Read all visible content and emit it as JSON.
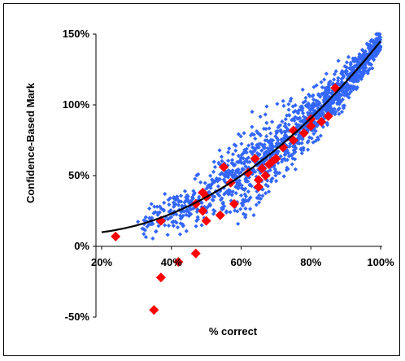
{
  "chart_data": {
    "type": "scatter",
    "title": "",
    "xlabel": "% correct",
    "ylabel": "Confidence-Based Mark",
    "xlim": [
      0.2,
      1.0
    ],
    "ylim": [
      -0.5,
      1.5
    ],
    "xticks": [
      "20%",
      "40%",
      "60%",
      "80%",
      "100%"
    ],
    "yticks": [
      "-50%",
      "0%",
      "50%",
      "100%",
      "150%"
    ],
    "grid": false,
    "legend": "none",
    "colors": {
      "blue_points": "#3366ff",
      "red_points": "#ff0000",
      "trend_line": "#000000"
    },
    "series": [
      {
        "marker": "small-blue-diamond",
        "cloud": {
          "n": 1400,
          "x_range": [
            0.3,
            1.0
          ],
          "trend": "quadratic",
          "note": "dense cloud of points scattered around the trend line"
        }
      },
      {
        "marker": "large-red-diamond",
        "x": [
          0.24,
          0.35,
          0.37,
          0.37,
          0.42,
          0.47,
          0.47,
          0.49,
          0.49,
          0.5,
          0.5,
          0.54,
          0.55,
          0.57,
          0.58,
          0.62,
          0.64,
          0.65,
          0.65,
          0.66,
          0.67,
          0.68,
          0.69,
          0.7,
          0.72,
          0.75,
          0.75,
          0.78,
          0.8,
          0.8,
          0.83,
          0.85,
          0.87
        ],
        "y": [
          0.07,
          -0.45,
          -0.22,
          0.18,
          -0.11,
          -0.05,
          0.3,
          0.38,
          0.25,
          0.18,
          0.35,
          0.22,
          0.56,
          0.45,
          0.3,
          0.52,
          0.62,
          0.42,
          0.47,
          0.55,
          0.5,
          0.58,
          0.6,
          0.62,
          0.7,
          0.75,
          0.82,
          0.8,
          0.85,
          0.9,
          0.88,
          0.92,
          1.12
        ]
      },
      {
        "marker": "trend-line",
        "fit": {
          "a": 0.1,
          "b": 1.99,
          "c": -3.32
        },
        "x_range": [
          0.2,
          1.0
        ]
      }
    ]
  }
}
